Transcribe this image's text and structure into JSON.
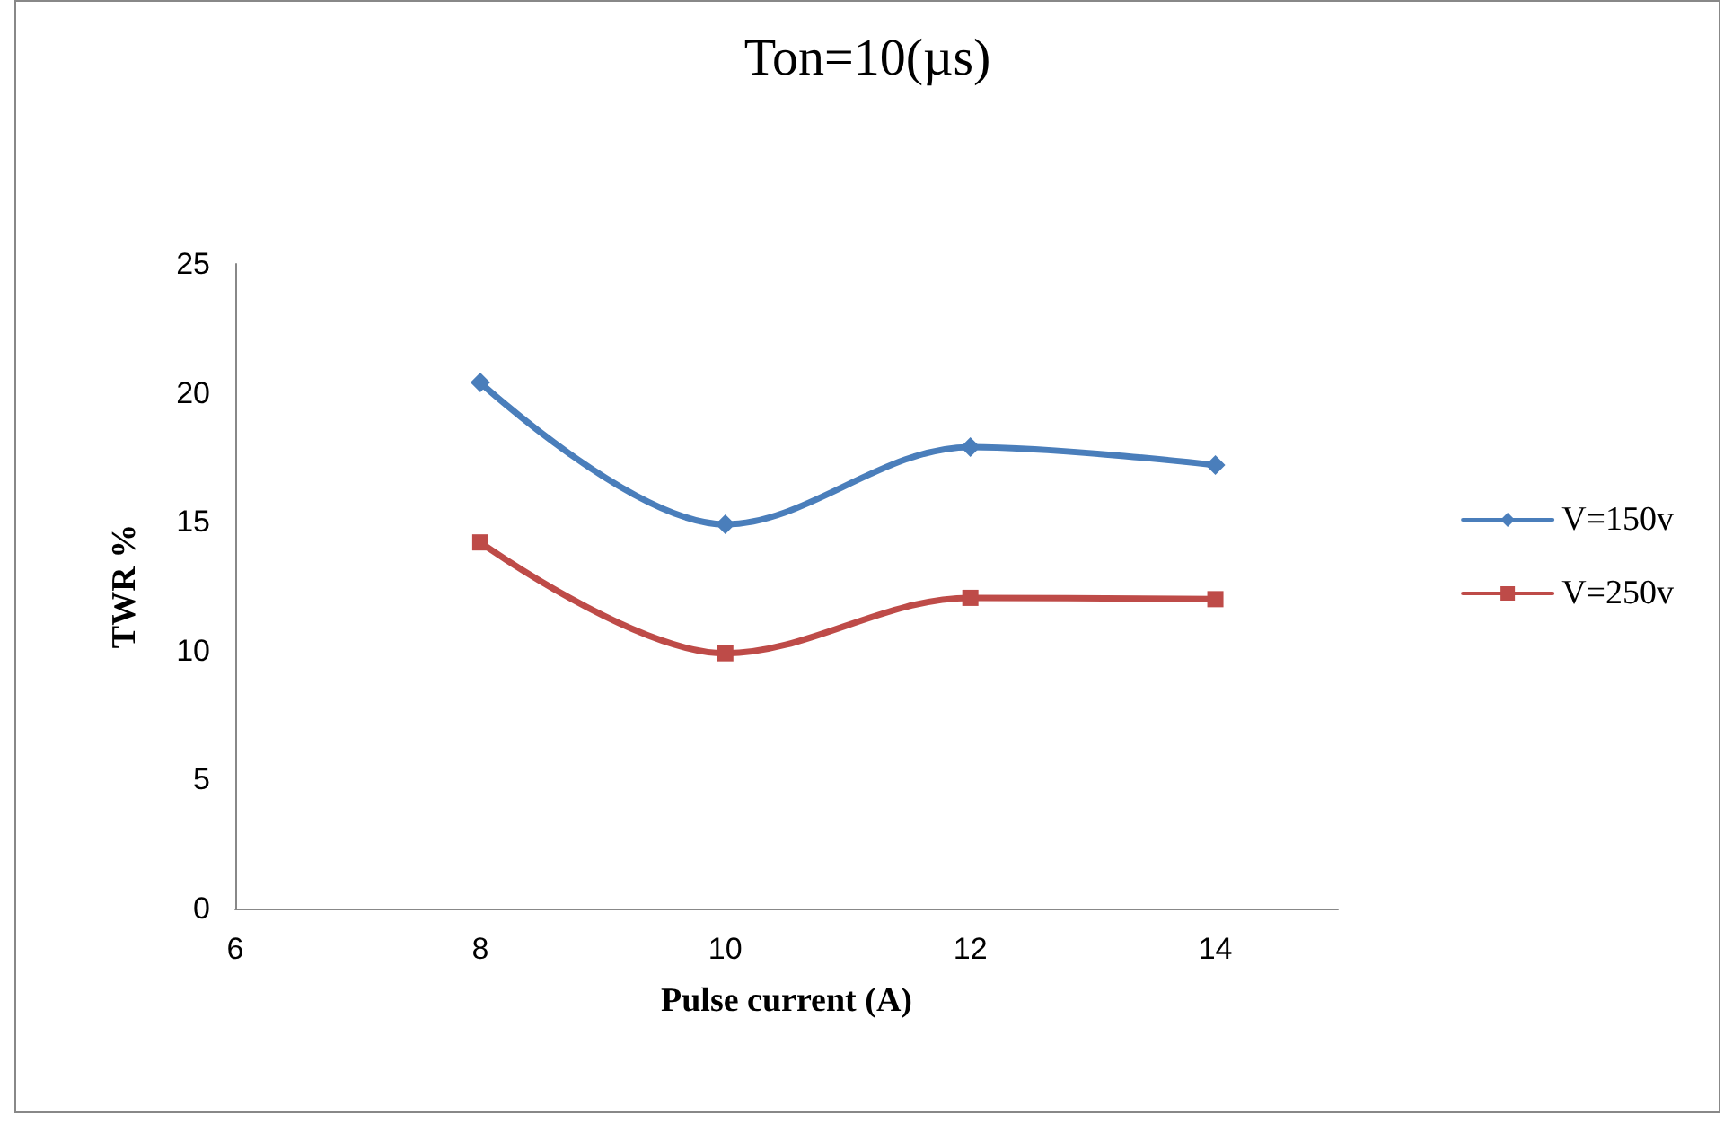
{
  "chart_data": {
    "type": "line",
    "title": "Ton=10(µs)",
    "xlabel": "Pulse current (A)",
    "ylabel": "TWR %",
    "x": [
      8,
      10,
      12,
      14
    ],
    "series": [
      {
        "name": "V=150v",
        "color": "#4a7ebb",
        "marker": "diamond",
        "values": [
          20.4,
          14.9,
          17.9,
          17.2
        ]
      },
      {
        "name": "V=250v",
        "color": "#be4b48",
        "marker": "square",
        "values": [
          14.2,
          9.9,
          12.05,
          12.0
        ]
      }
    ],
    "xlim": [
      6,
      15
    ],
    "xticks": [
      6,
      8,
      10,
      12,
      14
    ],
    "ylim": [
      0,
      25
    ],
    "yticks": [
      0,
      5,
      10,
      15,
      20,
      25
    ],
    "grid": false,
    "legend": "right",
    "line_style": "solid"
  }
}
